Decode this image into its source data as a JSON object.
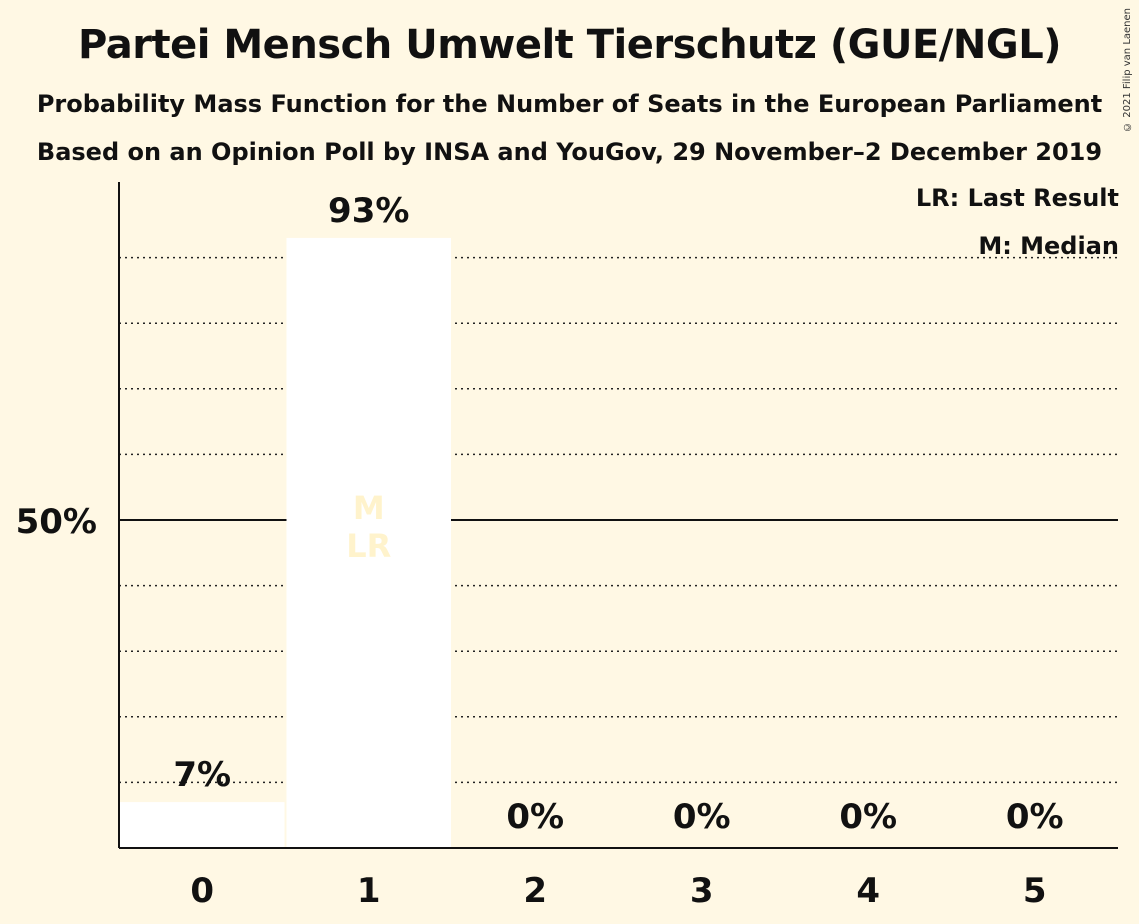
{
  "chart_data": {
    "type": "bar",
    "title": "Partei Mensch Umwelt Tierschutz (GUE/NGL)",
    "subtitle": "Probability Mass Function for the Number of Seats in the European Parliament",
    "subtitle2": "Based on an Opinion Poll by INSA and YouGov, 29 November–2 December 2019",
    "categories": [
      "0",
      "1",
      "2",
      "3",
      "4",
      "5"
    ],
    "values": [
      7,
      93,
      0,
      0,
      0,
      0
    ],
    "value_labels": [
      "7%",
      "93%",
      "0%",
      "0%",
      "0%",
      "0%"
    ],
    "ylim": [
      0,
      100
    ],
    "yticks": [
      {
        "value": 50,
        "label": "50%"
      }
    ],
    "bar_markers": [
      {
        "category": "1",
        "lines": [
          "M",
          "LR"
        ]
      }
    ],
    "legend": [
      "LR: Last Result",
      "M: Median"
    ],
    "legend_position": "top-right",
    "grid": true,
    "colors": {
      "background": "#fff8e4",
      "bar": "#ffffff",
      "text": "#111111",
      "marker_text": "#fff3cc"
    }
  },
  "copyright": "© 2021 Filip van Laenen"
}
